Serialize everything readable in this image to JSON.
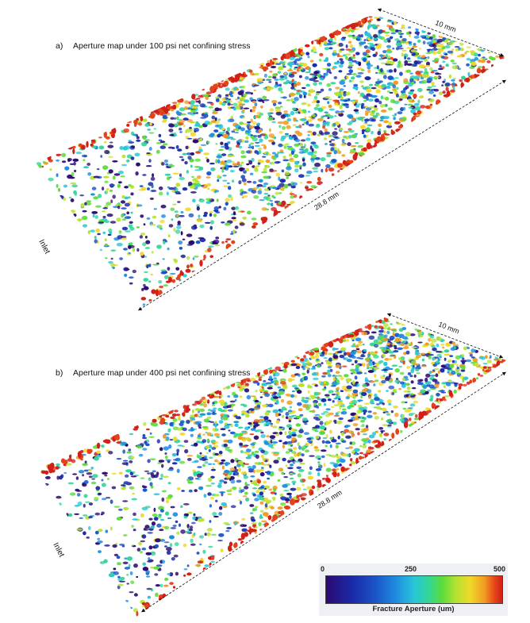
{
  "panel_a": {
    "caption_letter": "a)",
    "caption_text": "Aperture map under 100 psi net confining stress",
    "width_label": "10 mm",
    "length_label": "28.8 mm",
    "inlet_label": "Inlet",
    "seed": 11
  },
  "panel_b": {
    "caption_letter": "b)",
    "caption_text": "Aperture map under 400 psi net confining stress",
    "width_label": "10 mm",
    "length_label": "28.8 mm",
    "inlet_label": "Inlet",
    "seed": 47
  },
  "legend": {
    "ticks": [
      "0",
      "250",
      "500"
    ],
    "title": "Fracture Aperture (um)",
    "colors": [
      "#2a0a72",
      "#1a2aa8",
      "#1b55c8",
      "#1f8ee0",
      "#28c6d8",
      "#33d69a",
      "#5cdc3a",
      "#b6e232",
      "#f1d82a",
      "#f19a22",
      "#e4421a",
      "#d21f18"
    ]
  }
}
